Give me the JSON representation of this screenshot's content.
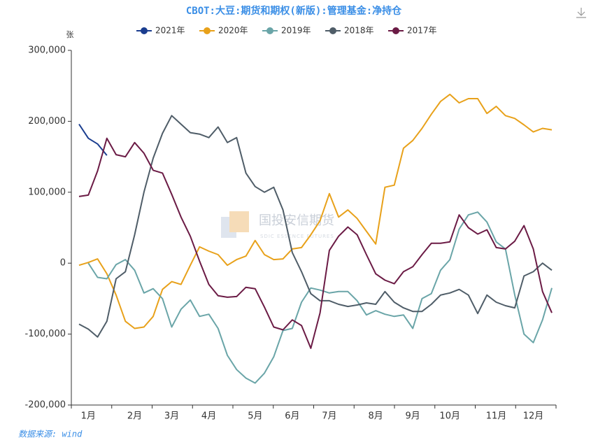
{
  "chart_data": {
    "type": "line",
    "title": "CBOT:大豆:期货和期权(新版):管理基金:净持仓",
    "y_label": "张",
    "source": "数据来源: wind",
    "watermark": "国投安信期货",
    "watermark_sub": "SDIC ESSENCE FUTURES",
    "categories": [
      null,
      "1月",
      null,
      null,
      null,
      null,
      "2月",
      null,
      null,
      null,
      "3月",
      null,
      null,
      null,
      "4月",
      null,
      null,
      null,
      null,
      "5月",
      null,
      null,
      null,
      "6月",
      null,
      null,
      null,
      "7月",
      null,
      null,
      null,
      null,
      "8月",
      null,
      null,
      null,
      "9月",
      null,
      null,
      null,
      "10月",
      null,
      null,
      null,
      null,
      "11月",
      null,
      null,
      null,
      "12月",
      null,
      null
    ],
    "ylim": [
      -200000,
      300000
    ],
    "yticks": [
      {
        "value": -200000,
        "label": "-200,000"
      },
      {
        "value": -100000,
        "label": "-100,000"
      },
      0,
      {
        "value": 100000,
        "label": "100,000"
      },
      {
        "value": 200000,
        "label": "200,000"
      },
      {
        "value": 300000,
        "label": "300,000"
      }
    ],
    "grid": false,
    "legend": "top",
    "series": [
      {
        "name": "2021年",
        "color": "#1a3d8f",
        "values": [
          196000,
          176000,
          168000,
          152000,
          null,
          null,
          null,
          null,
          null,
          null,
          null,
          null,
          null,
          null,
          null,
          null,
          null,
          null,
          null,
          null,
          null,
          null,
          null,
          null,
          null,
          null,
          null,
          null,
          null,
          null,
          null,
          null,
          null,
          null,
          null,
          null,
          null,
          null,
          null,
          null,
          null,
          null,
          null,
          null,
          null,
          null,
          null,
          null,
          null,
          null,
          null,
          null
        ]
      },
      {
        "name": "2020年",
        "color": "#e8a11a",
        "values": [
          -3000,
          1000,
          6000,
          -15000,
          -45000,
          -82000,
          -92000,
          -90000,
          -75000,
          -37000,
          -26000,
          -30000,
          -3000,
          23000,
          17000,
          12000,
          -3000,
          5000,
          10000,
          32000,
          12000,
          5000,
          6000,
          20000,
          22000,
          40000,
          60000,
          98000,
          65000,
          75000,
          63000,
          45000,
          27000,
          107000,
          110000,
          162000,
          173000,
          190000,
          210000,
          228000,
          238000,
          226000,
          232000,
          232000,
          211000,
          221000,
          208000,
          204000,
          195000,
          185000,
          190000,
          188000
        ]
      },
      {
        "name": "2019年",
        "color": "#6aa5a8",
        "values": [
          null,
          0,
          -20000,
          -22000,
          -2000,
          5000,
          -10000,
          -42000,
          -36000,
          -50000,
          -90000,
          -65000,
          -52000,
          -75000,
          -72000,
          -92000,
          -130000,
          -150000,
          -162000,
          -169000,
          -155000,
          -132000,
          -95000,
          -92000,
          -55000,
          -35000,
          -38000,
          -42000,
          -40000,
          -40000,
          -53000,
          -73000,
          -67000,
          -72000,
          -75000,
          -73000,
          -92000,
          -50000,
          -43000,
          -10000,
          5000,
          48000,
          68000,
          72000,
          58000,
          30000,
          20000,
          -45000,
          -100000,
          -112000,
          -80000,
          -35000
        ]
      },
      {
        "name": "2018年",
        "color": "#4f5d68",
        "values": [
          -86000,
          -93000,
          -104000,
          -82000,
          -22000,
          -12000,
          40000,
          100000,
          148000,
          183000,
          208000,
          196000,
          184000,
          182000,
          177000,
          192000,
          170000,
          177000,
          127000,
          108000,
          100000,
          107000,
          75000,
          15000,
          -12000,
          -43000,
          -53000,
          -53000,
          -58000,
          -61000,
          -59000,
          -56000,
          -58000,
          -40000,
          -55000,
          -63000,
          -68000,
          -68000,
          -58000,
          -45000,
          -42000,
          -37000,
          -45000,
          -71000,
          -45000,
          -55000,
          -60000,
          -63000,
          -18000,
          -12000,
          0,
          -10000
        ]
      },
      {
        "name": "2017年",
        "color": "#6b1b45",
        "values": [
          94000,
          96000,
          130000,
          176000,
          153000,
          150000,
          170000,
          155000,
          131000,
          127000,
          97000,
          65000,
          38000,
          3000,
          -30000,
          -46000,
          -48000,
          -47000,
          -34000,
          -36000,
          -62000,
          -90000,
          -94000,
          -80000,
          -88000,
          -120000,
          -70000,
          18000,
          38000,
          51000,
          40000,
          12000,
          -15000,
          -24000,
          -29000,
          -12000,
          -5000,
          12000,
          28000,
          28000,
          30000,
          68000,
          50000,
          41000,
          47000,
          22000,
          20000,
          31000,
          53000,
          20000,
          -40000,
          -70000
        ]
      }
    ]
  }
}
